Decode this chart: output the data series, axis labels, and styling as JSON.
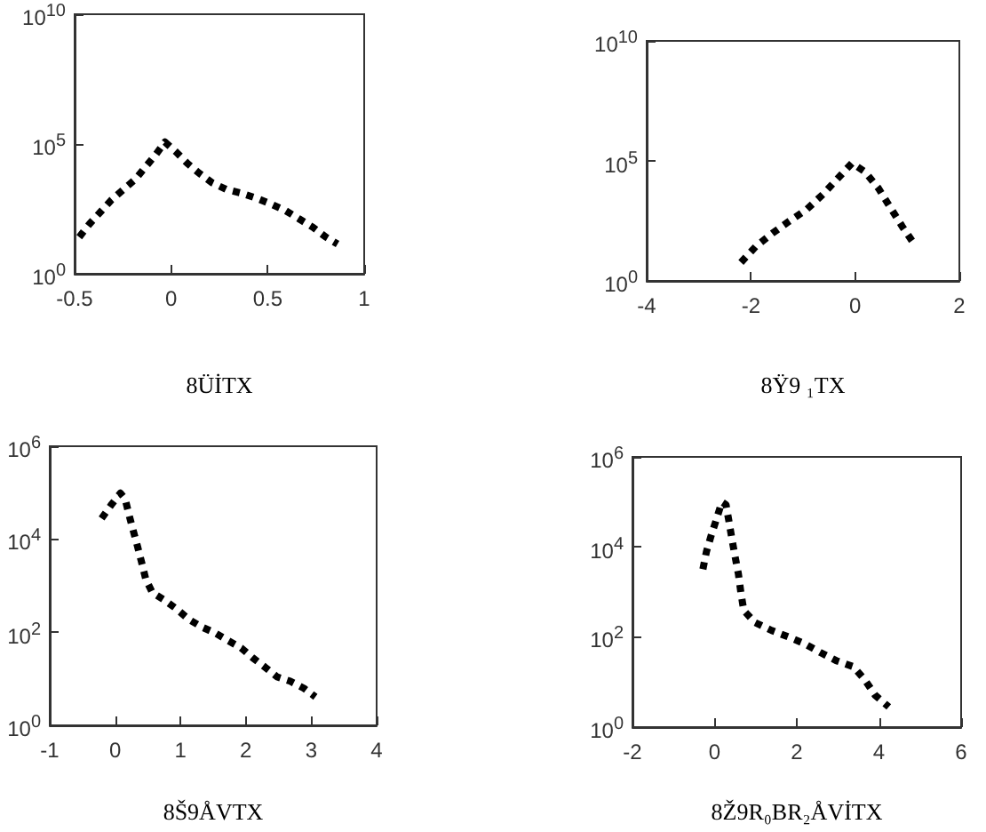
{
  "chart_data": [
    {
      "type": "line",
      "xlabel": "8ÜİTX",
      "log": "y",
      "line_style": "dotted",
      "marker": "none",
      "xlim": [
        -0.5,
        1
      ],
      "xticks": [
        -0.5,
        0,
        0.5,
        1
      ],
      "ylim": [
        1,
        10000000000
      ],
      "yticks": [
        {
          "value": 1,
          "label": "10$^{0}$"
        },
        {
          "value": 100000,
          "label": "10$^{5}$"
        },
        {
          "value": 10000000000,
          "label": "10$^{10}$"
        }
      ],
      "x": [
        -0.476,
        -0.423,
        -0.362,
        -0.31,
        -0.246,
        -0.185,
        -0.133,
        -0.081,
        -0.032,
        0.026,
        0.084,
        0.146,
        0.213,
        0.284,
        0.36,
        0.443,
        0.519,
        0.593,
        0.663,
        0.734,
        0.801,
        0.862
      ],
      "series": [
        {
          "color": "#000000",
          "values": [
            26,
            83,
            260,
            690,
            1800,
            4400,
            13000,
            38000,
            120000,
            49000,
            18000,
            7400,
            3200,
            1800,
            1300,
            810,
            480,
            270,
            130,
            62,
            26,
            14
          ]
        }
      ]
    },
    {
      "type": "line",
      "xlabel": "8Ÿ9 ₁TX",
      "log": "y",
      "line_style": "dotted",
      "marker": "none",
      "xlim": [
        -4,
        2
      ],
      "xticks": [
        -4,
        -2,
        0,
        2
      ],
      "ylim": [
        1,
        10000000000
      ],
      "yticks": [
        {
          "value": 1,
          "label": "10$^{0}$"
        },
        {
          "value": 100000,
          "label": "10$^{5}$"
        },
        {
          "value": 10000000000,
          "label": "10$^{10}$"
        }
      ],
      "x": [
        -2.19,
        -1.9,
        -1.59,
        -1.27,
        -0.93,
        -0.62,
        -0.35,
        -0.06,
        0.19,
        0.45,
        0.68,
        0.9,
        1.11
      ],
      "series": [
        {
          "color": "#000000",
          "values": [
            5.9,
            28,
            95,
            300,
            950,
            4000,
            17000,
            81000,
            35000,
            7100,
            1100,
            190,
            41
          ]
        }
      ]
    },
    {
      "type": "line",
      "xlabel": "8Š9ÅVTX",
      "log": "y",
      "line_style": "dotted",
      "marker": "none",
      "xlim": [
        -1,
        4
      ],
      "xticks": [
        -1,
        0,
        1,
        2,
        3,
        4
      ],
      "ylim": [
        1,
        1000000
      ],
      "yticks": [
        {
          "value": 1,
          "label": "10$^{0}$"
        },
        {
          "value": 100,
          "label": "10$^{2}$"
        },
        {
          "value": 10000,
          "label": "10$^{4}$"
        },
        {
          "value": 1000000,
          "label": "10$^{6}$"
        }
      ],
      "x": [
        -0.207,
        -0.063,
        0.081,
        0.153,
        0.216,
        0.279,
        0.342,
        0.405,
        0.468,
        0.568,
        0.748,
        0.937,
        1.126,
        1.324,
        1.523,
        1.73,
        1.928,
        2.108,
        2.288,
        2.477,
        2.676,
        2.892,
        3.063
      ],
      "series": [
        {
          "color": "#000000",
          "values": [
            28000,
            54000,
            98000,
            74000,
            32000,
            15000,
            7100,
            3200,
            1400,
            720,
            500,
            320,
            190,
            130,
            98,
            66,
            46,
            28,
            18,
            11,
            8.9,
            6.2,
            4.1
          ]
        }
      ]
    },
    {
      "type": "line",
      "xlabel": "8Ž9R₀BR₂ÅVİTX",
      "log": "y",
      "line_style": "dotted",
      "marker": "none",
      "xlim": [
        -2,
        6
      ],
      "xticks": [
        -2,
        0,
        2,
        4,
        6
      ],
      "ylim": [
        1,
        1000000
      ],
      "yticks": [
        {
          "value": 1,
          "label": "10$^{0}$"
        },
        {
          "value": 100,
          "label": "10$^{2}$"
        },
        {
          "value": 10000,
          "label": "10$^{4}$"
        },
        {
          "value": 1000000,
          "label": "10$^{6}$"
        }
      ],
      "x": [
        -0.285,
        -0.199,
        -0.084,
        0.061,
        0.176,
        0.277,
        0.349,
        0.421,
        0.493,
        0.579,
        0.637,
        0.709,
        0.983,
        1.386,
        1.804,
        2.193,
        2.582,
        2.957,
        3.375,
        3.663,
        3.908,
        4.239
      ],
      "series": [
        {
          "color": "#000000",
          "values": [
            3200,
            7900,
            18000,
            46000,
            100000,
            87000,
            37000,
            15000,
            6500,
            2500,
            1000,
            390,
            210,
            140,
            100,
            71,
            45,
            30,
            22,
            11,
            5.1,
            2.8
          ]
        }
      ]
    }
  ]
}
